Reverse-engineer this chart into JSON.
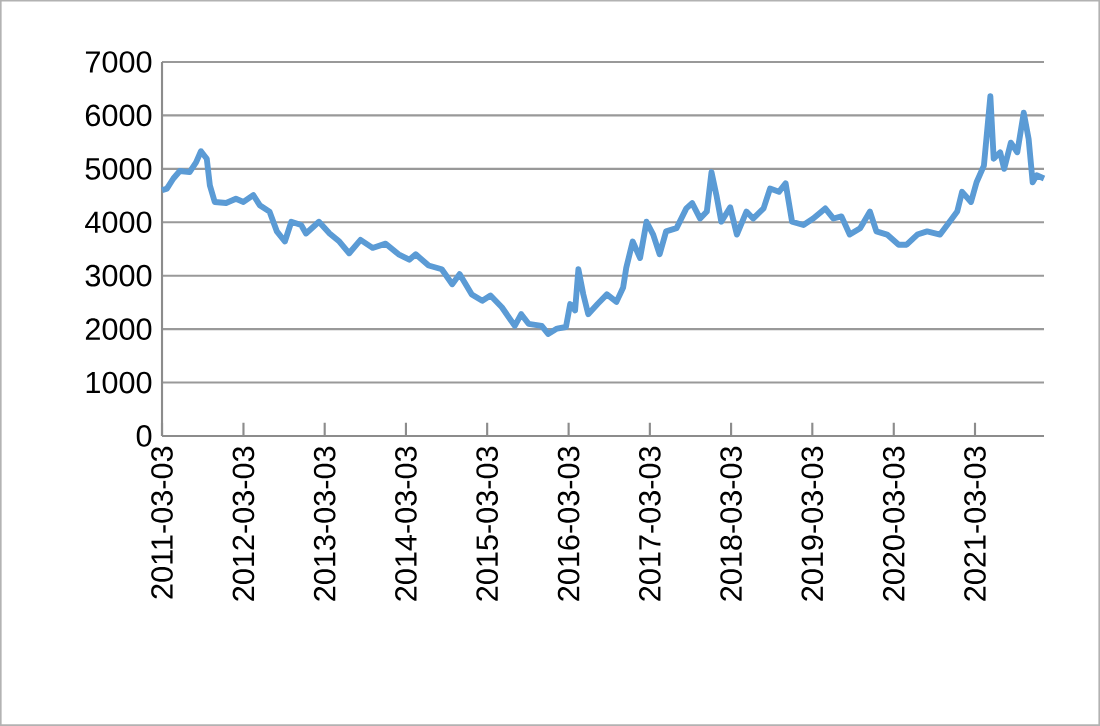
{
  "chart_data": {
    "type": "line",
    "x": [
      "2011-03-03",
      "2011-03-25",
      "2011-04-23",
      "2011-05-22",
      "2011-07-05",
      "2011-08-03",
      "2011-08-25",
      "2011-09-20",
      "2011-10-04",
      "2011-10-26",
      "2011-12-16",
      "2012-01-29",
      "2012-03-03",
      "2012-04-16",
      "2012-05-15",
      "2012-06-28",
      "2012-07-31",
      "2012-09-05",
      "2012-10-04",
      "2012-11-17",
      "2012-12-09",
      "2013-02-05",
      "2013-03-25",
      "2013-05-08",
      "2013-06-21",
      "2013-08-11",
      "2013-10-04",
      "2013-12-02",
      "2014-01-29",
      "2014-03-18",
      "2014-04-16",
      "2014-06-13",
      "2014-08-11",
      "2014-09-27",
      "2014-10-30",
      "2014-12-24",
      "2015-02-09",
      "2015-03-18",
      "2015-05-08",
      "2015-07-05",
      "2015-08-03",
      "2015-09-05",
      "2015-11-03",
      "2015-12-02",
      "2016-01-11",
      "2016-02-20",
      "2016-03-10",
      "2016-04-01",
      "2016-04-16",
      "2016-05-08",
      "2016-05-30",
      "2016-07-11",
      "2016-08-22",
      "2016-10-04",
      "2016-11-03",
      "2016-11-17",
      "2016-12-16",
      "2017-01-18",
      "2017-02-16",
      "2017-03-18",
      "2017-04-16",
      "2017-05-15",
      "2017-07-01",
      "2017-08-14",
      "2017-09-09",
      "2017-10-15",
      "2017-11-14",
      "2017-12-05",
      "2017-12-27",
      "2018-01-18",
      "2018-02-27",
      "2018-03-29",
      "2018-05-11",
      "2018-06-10",
      "2018-07-27",
      "2018-08-25",
      "2018-10-04",
      "2018-11-03",
      "2018-12-02",
      "2019-01-22",
      "2019-03-07",
      "2019-04-30",
      "2019-06-06",
      "2019-07-12",
      "2019-08-18",
      "2019-10-04",
      "2019-11-17",
      "2019-12-16",
      "2020-02-02",
      "2020-03-25",
      "2020-04-30",
      "2020-06-17",
      "2020-07-31",
      "2020-09-27",
      "2020-11-14",
      "2020-12-13",
      "2021-01-04",
      "2021-02-13",
      "2021-03-10",
      "2021-04-12",
      "2021-05-11",
      "2021-05-26",
      "2021-06-24",
      "2021-07-12",
      "2021-08-11",
      "2021-09-09",
      "2021-10-08",
      "2021-10-30",
      "2021-11-17",
      "2021-12-05",
      "2022-01-07"
    ],
    "series": [
      {
        "color": "#5b9bd5",
        "values": [
          4600,
          4630,
          4820,
          4960,
          4940,
          5120,
          5330,
          5190,
          4690,
          4380,
          4360,
          4440,
          4380,
          4510,
          4320,
          4200,
          3830,
          3640,
          4010,
          3950,
          3790,
          4010,
          3790,
          3640,
          3420,
          3670,
          3520,
          3600,
          3400,
          3300,
          3400,
          3190,
          3120,
          2840,
          3030,
          2650,
          2530,
          2630,
          2410,
          2060,
          2280,
          2100,
          2060,
          1910,
          2010,
          2040,
          2470,
          2350,
          3120,
          2650,
          2280,
          2470,
          2650,
          2510,
          2780,
          3150,
          3640,
          3330,
          4010,
          3770,
          3400,
          3830,
          3890,
          4260,
          4360,
          4070,
          4200,
          4940,
          4510,
          4010,
          4280,
          3770,
          4200,
          4070,
          4260,
          4630,
          4570,
          4730,
          4010,
          3950,
          4070,
          4260,
          4070,
          4110,
          3770,
          3890,
          4200,
          3830,
          3770,
          3580,
          3580,
          3770,
          3830,
          3770,
          4040,
          4200,
          4570,
          4380,
          4750,
          5060,
          6360,
          5190,
          5310,
          5000,
          5490,
          5310,
          6050,
          5560,
          4750,
          4880,
          4820
        ]
      }
    ],
    "xlim": [
      "2011-03-03",
      "2022-01-07"
    ],
    "xticks": [
      "2011-03-03",
      "2012-03-03",
      "2013-03-03",
      "2014-03-03",
      "2015-03-03",
      "2016-03-03",
      "2017-03-03",
      "2018-03-03",
      "2019-03-03",
      "2020-03-03",
      "2021-03-03"
    ],
    "ylim": [
      0,
      7000
    ],
    "yticks": [
      0,
      1000,
      2000,
      3000,
      4000,
      5000,
      6000,
      7000
    ],
    "grid": "y",
    "marker": "none",
    "line_style": "solid"
  }
}
